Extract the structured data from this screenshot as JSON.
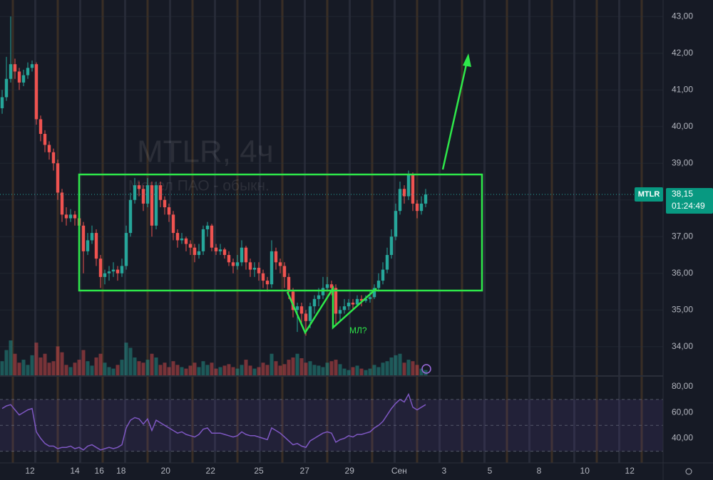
{
  "chart_data": [
    {
      "type": "candlestick",
      "title": "MTLR, 4ч",
      "subtitle": "Мечел ПАО - обыкн.",
      "symbol": "MTLR",
      "last_price": {
        "value": 38.15,
        "label": "38,15"
      },
      "countdown": "01:24:49",
      "annotation": "МЛ?",
      "up_color": "#26a69a",
      "down_color": "#ef5350",
      "ohlc": [
        [
          40.5,
          41.0,
          40.35,
          40.8
        ],
        [
          40.8,
          41.9,
          40.7,
          41.3
        ],
        [
          41.3,
          43.0,
          41.2,
          41.7
        ],
        [
          41.7,
          41.85,
          41.3,
          41.5
        ],
        [
          41.5,
          41.6,
          41.0,
          41.2
        ],
        [
          41.2,
          41.55,
          41.1,
          41.4
        ],
        [
          41.4,
          41.75,
          41.3,
          41.6
        ],
        [
          41.6,
          41.8,
          41.5,
          41.7
        ],
        [
          41.7,
          41.75,
          40.05,
          40.2
        ],
        [
          40.2,
          40.3,
          39.6,
          39.8
        ],
        [
          39.8,
          39.9,
          39.3,
          39.5
        ],
        [
          39.5,
          39.6,
          39.1,
          39.3
        ],
        [
          39.3,
          39.4,
          38.8,
          39.0
        ],
        [
          39.0,
          39.1,
          38.0,
          38.2
        ],
        [
          38.2,
          38.3,
          37.4,
          37.6
        ],
        [
          37.6,
          37.8,
          37.3,
          37.5
        ],
        [
          37.5,
          37.75,
          37.4,
          37.6
        ],
        [
          37.6,
          37.7,
          37.3,
          37.5
        ],
        [
          37.5,
          37.6,
          37.0,
          37.3
        ],
        [
          37.3,
          37.4,
          36.0,
          36.6
        ],
        [
          36.6,
          37.1,
          36.5,
          36.9
        ],
        [
          36.9,
          37.3,
          36.8,
          37.1
        ],
        [
          37.1,
          37.2,
          36.2,
          36.4
        ],
        [
          36.4,
          36.5,
          35.6,
          35.9
        ],
        [
          35.9,
          36.1,
          35.7,
          36.0
        ],
        [
          36.0,
          36.2,
          35.8,
          36.05
        ],
        [
          36.05,
          36.3,
          35.9,
          36.1
        ],
        [
          36.1,
          36.2,
          35.8,
          36.0
        ],
        [
          36.0,
          36.4,
          35.9,
          36.2
        ],
        [
          36.2,
          37.3,
          36.1,
          37.1
        ],
        [
          37.1,
          38.2,
          37.0,
          38.0
        ],
        [
          38.0,
          38.6,
          37.9,
          38.4
        ],
        [
          38.4,
          38.5,
          38.1,
          38.3
        ],
        [
          38.3,
          38.4,
          37.7,
          37.9
        ],
        [
          37.9,
          38.6,
          37.8,
          38.4
        ],
        [
          38.4,
          38.5,
          37.0,
          37.3
        ],
        [
          37.3,
          38.5,
          37.2,
          38.4
        ],
        [
          38.4,
          38.5,
          37.8,
          38.0
        ],
        [
          38.0,
          38.1,
          37.6,
          37.8
        ],
        [
          37.8,
          37.9,
          37.4,
          37.6
        ],
        [
          37.6,
          37.7,
          36.9,
          37.1
        ],
        [
          37.1,
          37.2,
          36.7,
          36.9
        ],
        [
          36.9,
          37.1,
          36.8,
          36.95
        ],
        [
          36.95,
          37.0,
          36.6,
          36.8
        ],
        [
          36.8,
          36.9,
          36.5,
          36.7
        ],
        [
          36.7,
          36.8,
          36.3,
          36.5
        ],
        [
          36.5,
          36.8,
          36.4,
          36.6
        ],
        [
          36.6,
          37.3,
          36.5,
          37.2
        ],
        [
          37.2,
          37.4,
          37.0,
          37.3
        ],
        [
          37.3,
          37.35,
          36.6,
          36.7
        ],
        [
          36.7,
          36.8,
          36.5,
          36.6
        ],
        [
          36.6,
          36.8,
          36.5,
          36.65
        ],
        [
          36.65,
          36.7,
          36.4,
          36.5
        ],
        [
          36.5,
          36.6,
          36.2,
          36.3
        ],
        [
          36.3,
          36.4,
          36.0,
          36.2
        ],
        [
          36.2,
          36.5,
          36.1,
          36.3
        ],
        [
          36.3,
          36.9,
          36.2,
          36.7
        ],
        [
          36.7,
          36.75,
          36.1,
          36.3
        ],
        [
          36.3,
          36.4,
          35.9,
          36.1
        ],
        [
          36.1,
          36.3,
          35.9,
          36.15
        ],
        [
          36.15,
          36.3,
          35.8,
          36.0
        ],
        [
          36.0,
          36.1,
          35.6,
          35.8
        ],
        [
          35.8,
          35.9,
          35.5,
          35.7
        ],
        [
          35.7,
          36.9,
          35.6,
          36.6
        ],
        [
          36.6,
          36.7,
          36.1,
          36.3
        ],
        [
          36.3,
          36.4,
          36.0,
          36.2
        ],
        [
          36.2,
          36.3,
          35.6,
          35.9
        ],
        [
          35.9,
          36.0,
          35.3,
          35.5
        ],
        [
          35.5,
          35.6,
          34.8,
          35.0
        ],
        [
          35.0,
          35.2,
          34.4,
          35.1
        ],
        [
          35.1,
          35.2,
          34.6,
          34.9
        ],
        [
          34.9,
          35.0,
          34.3,
          34.7
        ],
        [
          34.7,
          35.2,
          34.5,
          35.1
        ],
        [
          35.1,
          35.4,
          34.9,
          35.3
        ],
        [
          35.3,
          35.6,
          35.1,
          35.4
        ],
        [
          35.4,
          35.9,
          35.3,
          35.6
        ],
        [
          35.6,
          35.9,
          35.5,
          35.7
        ],
        [
          35.7,
          35.8,
          35.4,
          35.6
        ],
        [
          35.6,
          35.7,
          34.6,
          34.9
        ],
        [
          34.9,
          35.1,
          34.7,
          35.0
        ],
        [
          35.0,
          35.3,
          34.9,
          35.1
        ],
        [
          35.1,
          35.3,
          35.0,
          35.2
        ],
        [
          35.2,
          35.3,
          35.0,
          35.15
        ],
        [
          35.15,
          35.4,
          35.1,
          35.3
        ],
        [
          35.3,
          35.4,
          35.1,
          35.25
        ],
        [
          35.25,
          35.4,
          35.2,
          35.3
        ],
        [
          35.3,
          35.5,
          35.2,
          35.35
        ],
        [
          35.35,
          35.7,
          35.3,
          35.6
        ],
        [
          35.6,
          36.0,
          35.5,
          35.8
        ],
        [
          35.8,
          36.3,
          35.7,
          36.1
        ],
        [
          36.1,
          36.7,
          36.0,
          36.5
        ],
        [
          36.5,
          37.2,
          36.4,
          37.0
        ],
        [
          37.0,
          37.9,
          36.9,
          37.7
        ],
        [
          37.7,
          38.5,
          37.6,
          38.3
        ],
        [
          38.3,
          38.4,
          37.9,
          38.1
        ],
        [
          38.1,
          38.8,
          38.0,
          38.7
        ],
        [
          38.7,
          38.75,
          37.7,
          37.9
        ],
        [
          37.9,
          38.0,
          37.5,
          37.7
        ],
        [
          37.7,
          38.1,
          37.6,
          37.9
        ],
        [
          37.9,
          38.3,
          37.8,
          38.15
        ]
      ],
      "volume": [
        20,
        35,
        48,
        30,
        18,
        22,
        15,
        28,
        45,
        25,
        30,
        18,
        20,
        40,
        32,
        15,
        12,
        18,
        22,
        35,
        20,
        14,
        25,
        30,
        18,
        12,
        10,
        15,
        22,
        45,
        38,
        25,
        20,
        18,
        22,
        30,
        25,
        15,
        18,
        12,
        20,
        15,
        12,
        10,
        14,
        18,
        12,
        20,
        15,
        18,
        10,
        12,
        14,
        16,
        12,
        10,
        15,
        22,
        14,
        10,
        12,
        18,
        15,
        30,
        20,
        14,
        16,
        22,
        25,
        30,
        24,
        18,
        20,
        15,
        14,
        12,
        18,
        20,
        22,
        16,
        10,
        8,
        12,
        14,
        10,
        8,
        10,
        15,
        12,
        18,
        20,
        25,
        28,
        30,
        18,
        22,
        20,
        15,
        10,
        8
      ],
      "ylim": [
        33.2,
        43.45
      ],
      "yticks": [
        {
          "value": 34,
          "label": "34,00"
        },
        {
          "value": 35,
          "label": "35,00"
        },
        {
          "value": 36,
          "label": "36,00"
        },
        {
          "value": 37,
          "label": "37,00"
        },
        {
          "value": 38,
          "label": "38,00"
        },
        {
          "value": 39,
          "label": "39,00"
        },
        {
          "value": 40,
          "label": "40,00"
        },
        {
          "value": 41,
          "label": "41,00"
        },
        {
          "value": 42,
          "label": "42,00"
        },
        {
          "value": 43,
          "label": "43,00"
        }
      ],
      "xlim": [
        -0.5,
        154.5
      ],
      "xticks": [
        {
          "value": 6.5,
          "label": "12"
        },
        {
          "value": 17,
          "label": "14"
        },
        {
          "value": 22.7,
          "label": "16"
        },
        {
          "value": 27.8,
          "label": "18"
        },
        {
          "value": 38.2,
          "label": "20"
        },
        {
          "value": 48.7,
          "label": "22"
        },
        {
          "value": 60,
          "label": "25"
        },
        {
          "value": 70.7,
          "label": "27"
        },
        {
          "value": 81.2,
          "label": "29"
        },
        {
          "value": 92.8,
          "label": "Сен"
        },
        {
          "value": 103.3,
          "label": "3"
        },
        {
          "value": 114,
          "label": "5"
        },
        {
          "value": 125.5,
          "label": "8"
        },
        {
          "value": 136.2,
          "label": "10"
        },
        {
          "value": 146.7,
          "label": "12"
        }
      ]
    },
    {
      "type": "line",
      "color": "#7e57c2",
      "values": [
        63,
        65,
        66,
        62,
        58,
        60,
        62,
        63,
        45,
        40,
        36,
        34,
        34,
        32,
        33,
        33,
        34,
        32,
        33,
        31,
        34,
        35,
        33,
        31,
        32,
        33,
        32,
        33,
        35,
        48,
        54,
        56,
        55,
        51,
        55,
        46,
        54,
        52,
        50,
        48,
        46,
        44,
        45,
        43,
        42,
        41,
        43,
        47,
        48,
        44,
        44,
        44,
        43,
        42,
        41,
        42,
        45,
        43,
        42,
        42,
        41,
        40,
        39,
        48,
        46,
        44,
        41,
        38,
        35,
        36,
        34,
        33,
        38,
        40,
        42,
        44,
        45,
        44,
        37,
        39,
        40,
        42,
        41,
        43,
        43,
        44,
        45,
        48,
        50,
        53,
        58,
        63,
        67,
        70,
        68,
        74,
        64,
        62,
        64,
        66
      ],
      "levels": [
        30,
        50,
        70
      ],
      "ylim": [
        21,
        87
      ],
      "yticks": [
        {
          "value": 40,
          "label": "40,00"
        },
        {
          "value": 60,
          "label": "60,00"
        },
        {
          "value": 80,
          "label": "80,00"
        }
      ]
    }
  ]
}
